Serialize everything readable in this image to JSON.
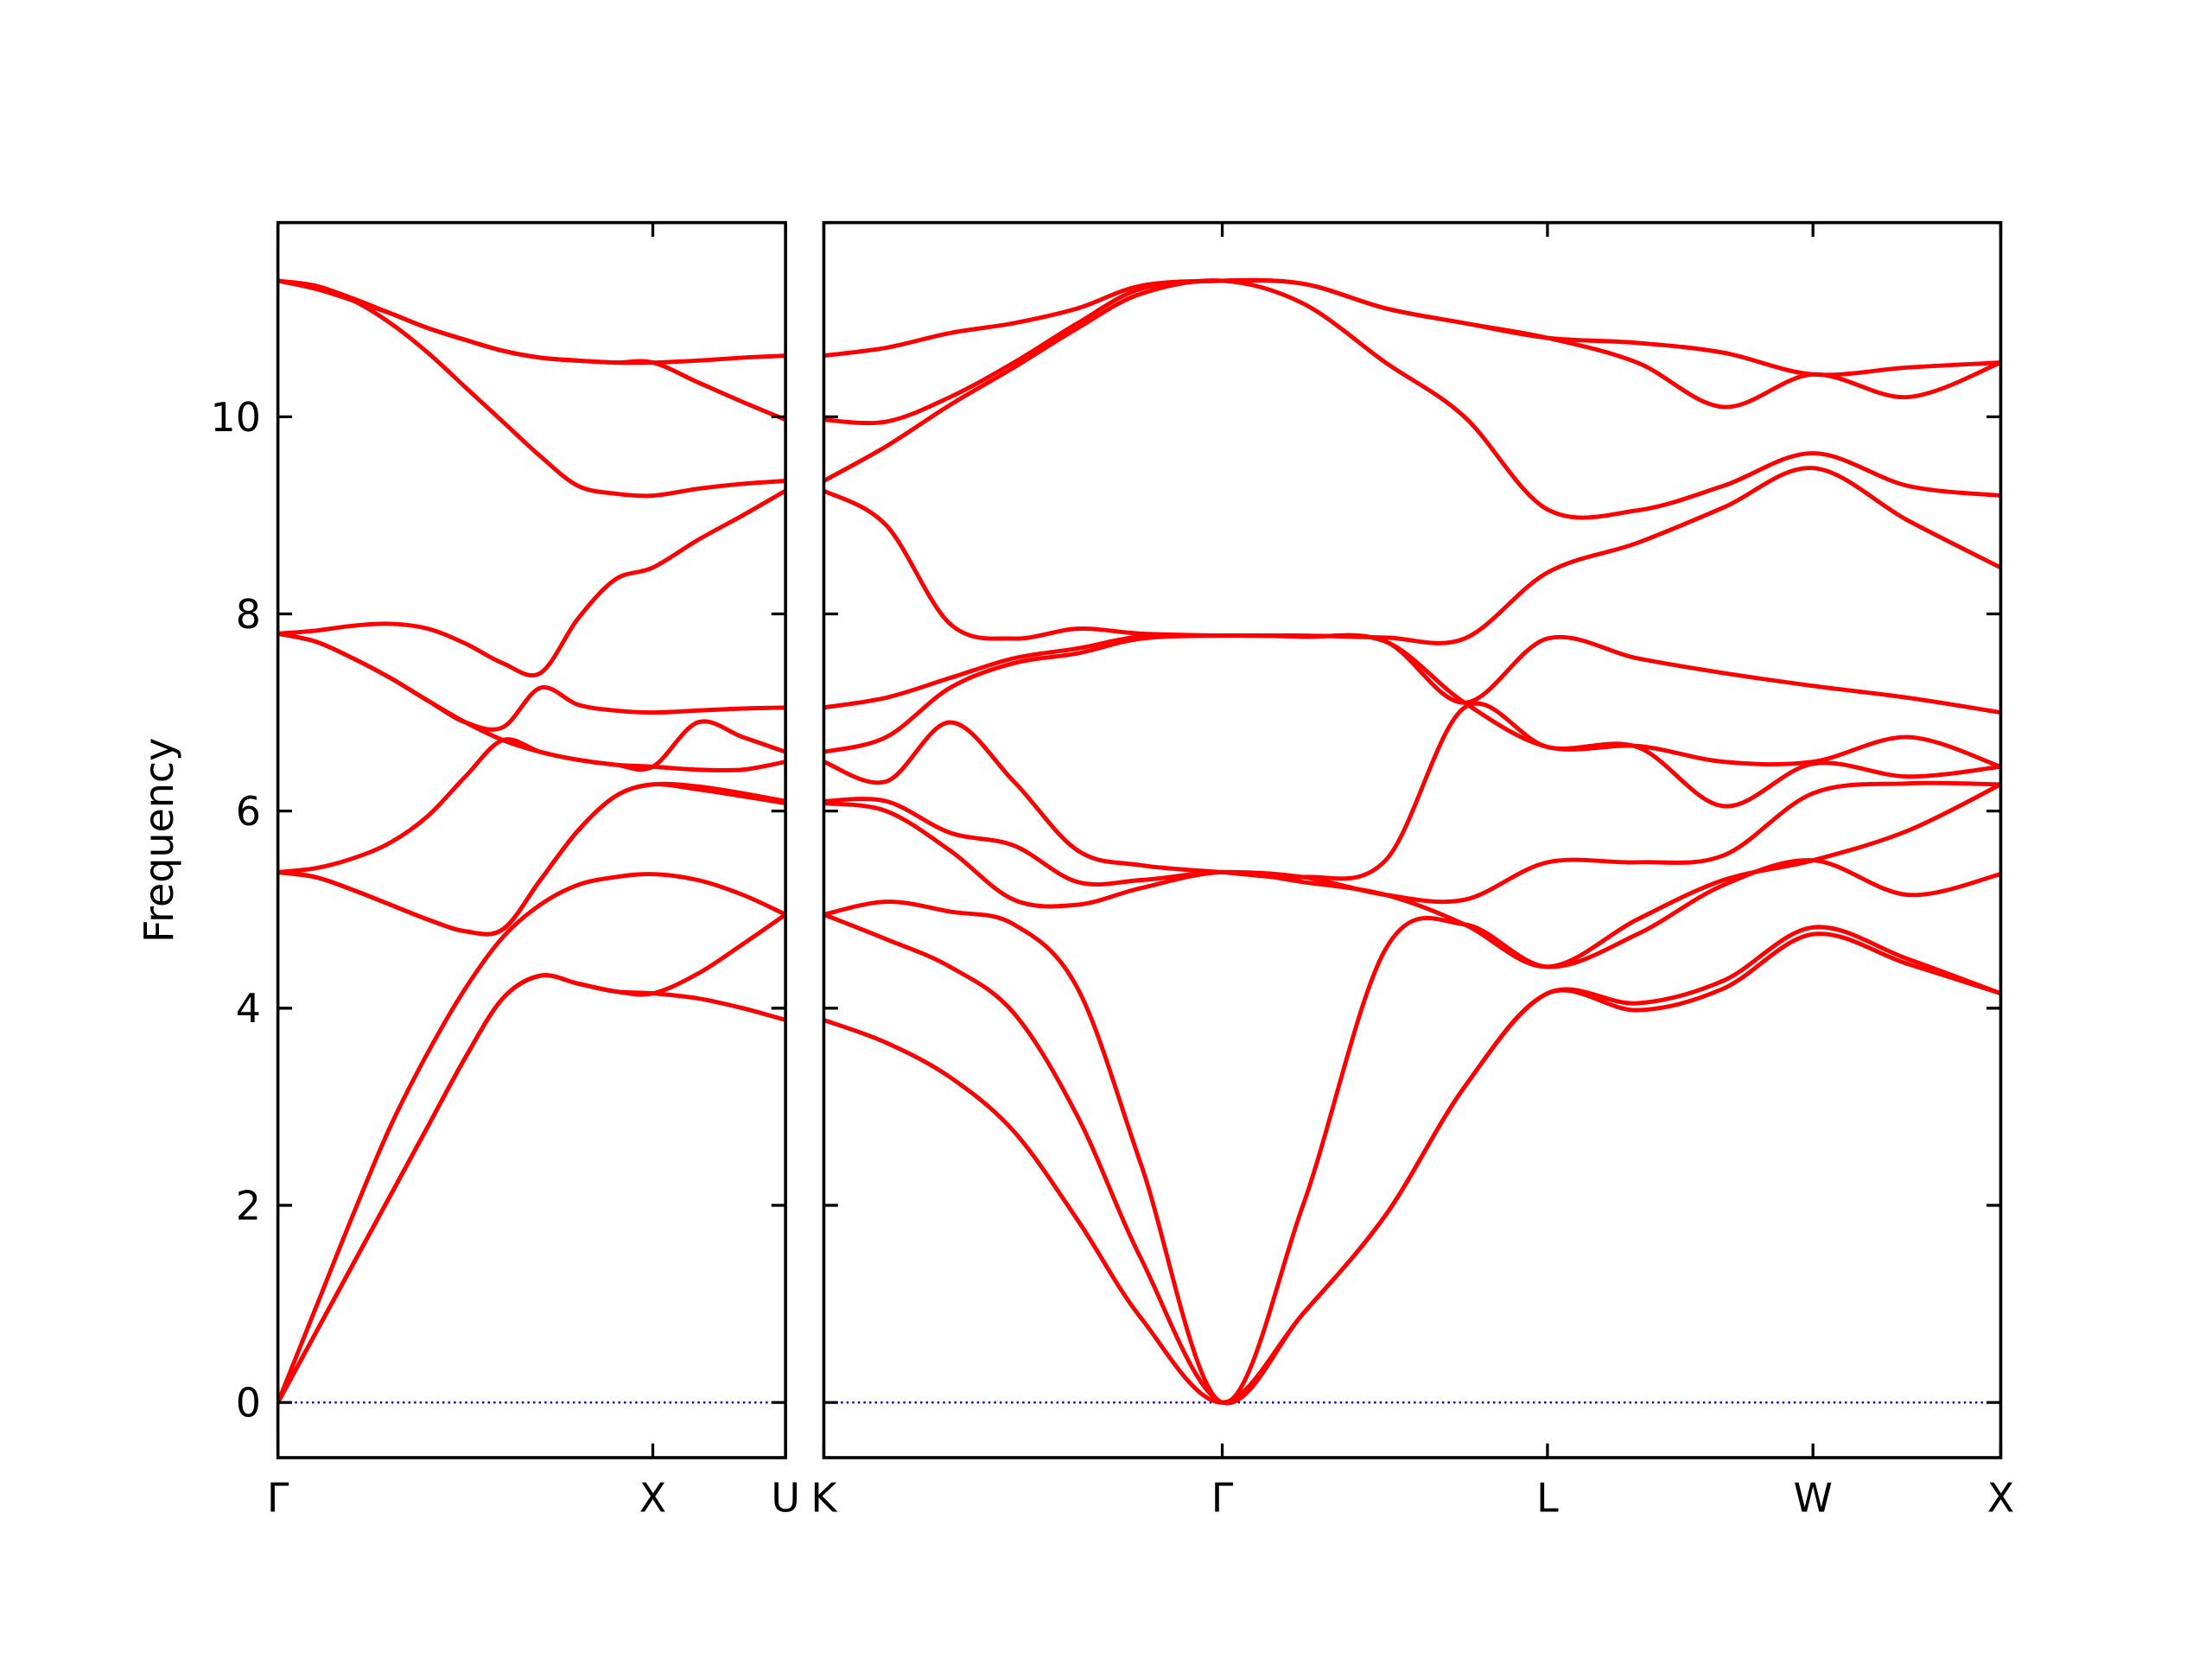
{
  "chart_data": [
    {
      "type": "line",
      "ylabel": "Frequency",
      "color": "#ff0000",
      "hline": 0,
      "hline_color": "#0000cc",
      "show_ytick_labels": true,
      "x": [
        0,
        0.1,
        0.2,
        0.3,
        0.4,
        0.5,
        0.6,
        0.7,
        0.8,
        0.9,
        1.0,
        1.12,
        1.24,
        1.354
      ],
      "xlim": [
        0,
        1.354
      ],
      "xticks": [
        {
          "value": 0,
          "label": "Γ"
        },
        {
          "value": 1.0,
          "label": "X"
        },
        {
          "value": 1.354,
          "label": "U"
        }
      ],
      "ylim": [
        -0.56,
        11.97
      ],
      "yticks": [
        0,
        2,
        4,
        6,
        8,
        10
      ],
      "series": [
        {
          "values": [
            0,
            0.7,
            1.4,
            2.1,
            2.8,
            3.5,
            4.1,
            4.33,
            4.25,
            4.17,
            4.15,
            4.1,
            4.0,
            3.88
          ]
        },
        {
          "values": [
            0,
            0.7,
            1.4,
            2.1,
            2.8,
            3.5,
            4.1,
            4.33,
            4.25,
            4.17,
            4.15,
            4.35,
            4.65,
            4.95
          ]
        },
        {
          "values": [
            0,
            0.95,
            1.9,
            2.8,
            3.55,
            4.2,
            4.72,
            5.05,
            5.25,
            5.33,
            5.36,
            5.3,
            5.15,
            4.95
          ]
        },
        {
          "values": [
            5.38,
            5.33,
            5.2,
            5.05,
            4.9,
            4.78,
            4.8,
            5.3,
            5.8,
            6.15,
            6.27,
            6.22,
            6.15,
            6.08
          ]
        },
        {
          "values": [
            5.38,
            5.33,
            5.2,
            5.05,
            4.9,
            4.78,
            4.8,
            5.3,
            5.8,
            6.15,
            6.27,
            6.25,
            6.18,
            6.1
          ]
        },
        {
          "values": [
            5.38,
            5.42,
            5.52,
            5.68,
            5.95,
            6.35,
            6.72,
            6.6,
            6.52,
            6.47,
            6.45,
            6.42,
            6.42,
            6.5
          ]
        },
        {
          "values": [
            7.8,
            7.72,
            7.55,
            7.35,
            7.12,
            6.9,
            6.72,
            6.6,
            6.52,
            6.47,
            6.45,
            6.9,
            6.75,
            6.6
          ]
        },
        {
          "values": [
            7.8,
            7.72,
            7.55,
            7.35,
            7.12,
            6.9,
            6.85,
            7.25,
            7.08,
            7.02,
            7.0,
            7.02,
            7.04,
            7.05
          ]
        },
        {
          "values": [
            7.8,
            7.83,
            7.88,
            7.9,
            7.85,
            7.7,
            7.5,
            7.4,
            7.95,
            8.35,
            8.47,
            8.75,
            9.0,
            9.25
          ]
        },
        {
          "values": [
            11.38,
            11.3,
            11.18,
            10.95,
            10.65,
            10.3,
            9.95,
            9.6,
            9.3,
            9.22,
            9.2,
            9.27,
            9.32,
            9.35
          ]
        },
        {
          "values": [
            11.38,
            11.3,
            11.18,
            11.05,
            10.9,
            10.78,
            10.67,
            10.6,
            10.57,
            10.55,
            10.55,
            10.35,
            10.15,
            9.97
          ]
        },
        {
          "values": [
            11.38,
            11.33,
            11.2,
            11.05,
            10.9,
            10.78,
            10.67,
            10.6,
            10.57,
            10.55,
            10.55,
            10.57,
            10.6,
            10.62
          ]
        }
      ]
    },
    {
      "type": "line",
      "color": "#ff0000",
      "hline": 0,
      "hline_color": "#0000cc",
      "show_ytick_labels": false,
      "x": [
        1.354,
        1.52,
        1.69,
        1.86,
        2.03,
        2.2,
        2.415,
        2.63,
        2.85,
        3.06,
        3.281,
        3.52,
        3.75,
        3.988,
        4.24,
        4.488
      ],
      "xlim": [
        1.354,
        4.488
      ],
      "xticks": [
        {
          "value": 1.354,
          "label": "K"
        },
        {
          "value": 2.415,
          "label": "Γ"
        },
        {
          "value": 3.281,
          "label": "L"
        },
        {
          "value": 3.988,
          "label": "W"
        },
        {
          "value": 4.488,
          "label": "X"
        }
      ],
      "ylim": [
        -0.56,
        11.97
      ],
      "yticks": [
        0,
        2,
        4,
        6,
        8,
        10
      ],
      "series": [
        {
          "values": [
            3.88,
            3.65,
            3.3,
            2.75,
            1.85,
            0.85,
            0,
            0.9,
            1.9,
            3.2,
            4.15,
            3.98,
            4.2,
            4.75,
            4.45,
            4.15
          ]
        },
        {
          "values": [
            4.95,
            4.7,
            4.42,
            3.95,
            2.9,
            1.45,
            0,
            0.9,
            1.9,
            3.2,
            4.15,
            4.05,
            4.28,
            4.82,
            4.5,
            4.15
          ]
        },
        {
          "values": [
            4.95,
            5.08,
            4.98,
            4.85,
            4.2,
            2.4,
            0,
            2.0,
            4.6,
            4.85,
            4.42,
            4.75,
            5.25,
            5.5,
            5.15,
            5.36
          ]
        },
        {
          "values": [
            6.08,
            6.0,
            5.6,
            5.1,
            5.05,
            5.22,
            5.38,
            5.28,
            5.15,
            4.85,
            4.42,
            4.9,
            5.3,
            5.5,
            5.8,
            6.27
          ]
        },
        {
          "values": [
            6.1,
            6.1,
            5.78,
            5.65,
            5.28,
            5.3,
            5.38,
            5.33,
            5.15,
            5.1,
            5.48,
            5.48,
            5.55,
            6.18,
            6.28,
            6.27
          ]
        },
        {
          "values": [
            6.5,
            6.3,
            6.9,
            6.3,
            5.6,
            5.45,
            5.38,
            5.33,
            5.5,
            7.05,
            6.65,
            6.65,
            6.05,
            6.48,
            6.35,
            6.45
          ]
        },
        {
          "values": [
            6.6,
            6.75,
            7.25,
            7.5,
            7.6,
            7.75,
            7.78,
            7.77,
            7.72,
            7.1,
            6.65,
            6.66,
            6.5,
            6.5,
            6.75,
            6.45
          ]
        },
        {
          "values": [
            7.05,
            7.15,
            7.35,
            7.55,
            7.65,
            7.77,
            7.78,
            7.77,
            7.72,
            7.1,
            7.75,
            7.55,
            7.4,
            7.27,
            7.15,
            7.0
          ]
        },
        {
          "values": [
            9.25,
            8.9,
            7.9,
            7.75,
            7.85,
            7.8,
            7.78,
            7.78,
            7.76,
            7.75,
            8.42,
            8.72,
            9.08,
            9.48,
            8.95,
            8.47
          ]
        },
        {
          "values": [
            9.35,
            9.7,
            10.12,
            10.5,
            10.9,
            11.25,
            11.38,
            11.15,
            10.55,
            10.0,
            9.06,
            9.05,
            9.3,
            9.63,
            9.3,
            9.2
          ]
        },
        {
          "values": [
            9.97,
            9.95,
            10.2,
            10.55,
            10.95,
            11.3,
            11.38,
            11.35,
            11.1,
            10.95,
            10.8,
            10.55,
            10.1,
            10.43,
            10.2,
            10.55
          ]
        },
        {
          "values": [
            10.62,
            10.7,
            10.85,
            10.95,
            11.1,
            11.33,
            11.38,
            11.35,
            11.1,
            10.95,
            10.8,
            10.75,
            10.65,
            10.43,
            10.5,
            10.55
          ]
        }
      ]
    }
  ]
}
